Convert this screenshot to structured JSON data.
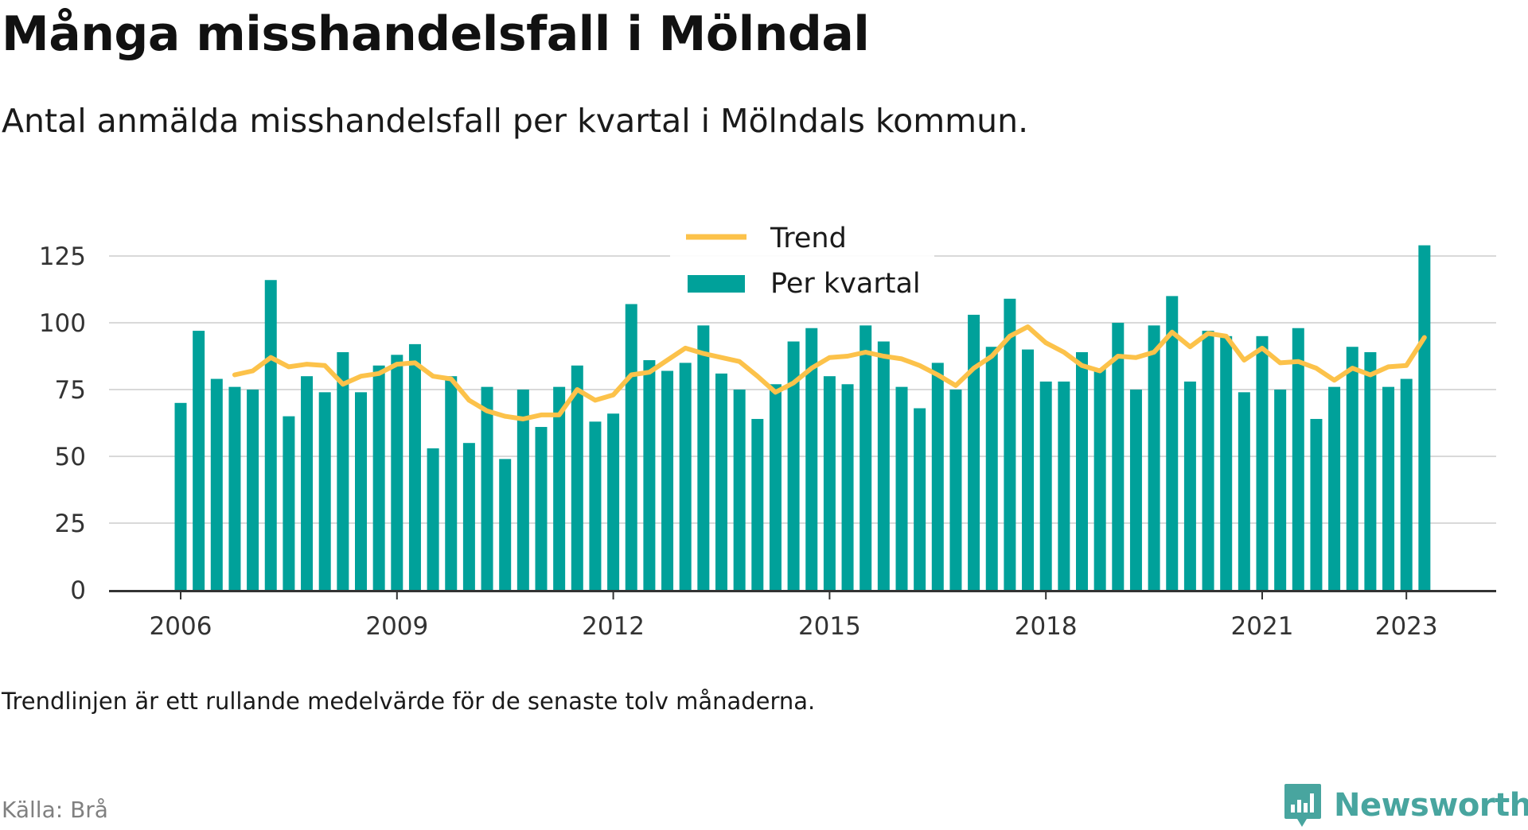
{
  "title": "Många misshandelsfall i Mölndal",
  "subtitle": "Antal anmälda misshandelsfall per kvartal i Mölndals kommun.",
  "note": "Trendlinjen är ett rullande medelvärde för de senaste tolv månaderna.",
  "source": "Källa: Brå",
  "brand": "Newsworthy",
  "colors": {
    "bars": "#00a19a",
    "trend": "#fcc24a",
    "grid": "#d9d9d9",
    "axis": "#333333",
    "brand": "#48a59f"
  },
  "chart_data": {
    "type": "bar",
    "x_start": "2006 Q1",
    "ylim": [
      0,
      125
    ],
    "yticks": [
      0,
      25,
      50,
      75,
      100,
      125
    ],
    "xticks": [
      "2006",
      "2009",
      "2012",
      "2015",
      "2018",
      "2021",
      "2023"
    ],
    "legend_position": "top-center",
    "grid": true,
    "series": [
      {
        "name": "Per kvartal",
        "type": "bar",
        "values": [
          70,
          97,
          79,
          76,
          75,
          116,
          65,
          80,
          74,
          89,
          74,
          84,
          88,
          92,
          53,
          80,
          55,
          76,
          49,
          75,
          61,
          76,
          84,
          63,
          66,
          107,
          86,
          82,
          85,
          99,
          81,
          75,
          64,
          77,
          93,
          98,
          80,
          77,
          99,
          93,
          76,
          68,
          85,
          75,
          103,
          91,
          109,
          90,
          78,
          78,
          89,
          83,
          100,
          75,
          99,
          110,
          78,
          97,
          95,
          74,
          95,
          75,
          98,
          64,
          76,
          91,
          89,
          76,
          79,
          129
        ]
      },
      {
        "name": "Trend",
        "type": "line",
        "start_index": 3,
        "values": [
          80.5,
          82,
          87,
          83.5,
          84.5,
          84,
          77,
          80,
          81,
          84.5,
          85,
          80,
          79,
          71,
          67,
          65,
          64,
          65.5,
          65.5,
          75,
          71,
          73,
          80.5,
          81.5,
          86,
          90.5,
          88.5,
          87,
          85.5,
          80,
          74,
          77.5,
          83,
          87,
          87.5,
          89,
          87.5,
          86.5,
          84,
          80.5,
          76.5,
          83,
          87.5,
          95,
          98.5,
          92.5,
          89,
          84,
          82,
          87.5,
          87,
          89,
          96.5,
          91,
          96,
          95,
          86,
          90.5,
          85,
          85.5,
          83,
          78.5,
          83,
          80.5,
          83.5,
          84,
          94.5
        ]
      }
    ]
  }
}
